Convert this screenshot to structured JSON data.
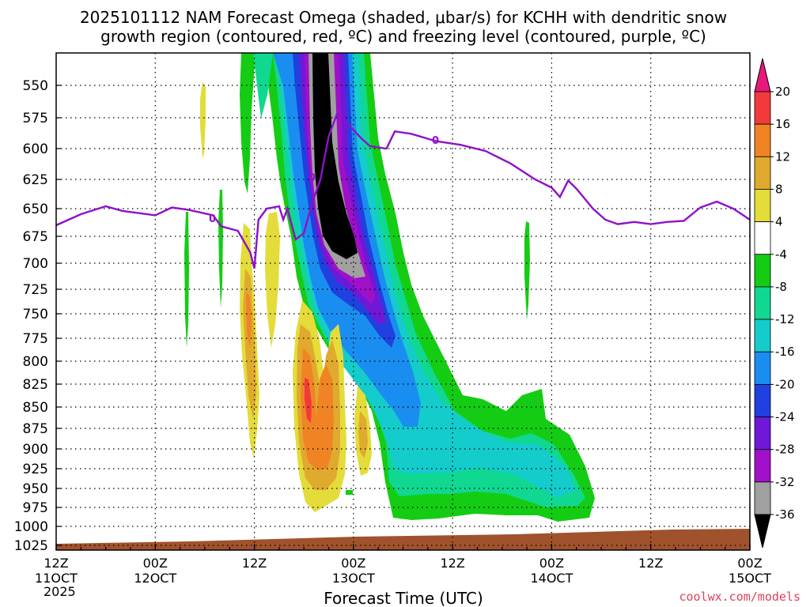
{
  "chart_data": {
    "type": "heatmap",
    "title_lines": [
      "2025101112 NAM Forecast Omega (shaded, μbar/s) for KCHH with dendritic snow",
      "growth region (contoured, red, ºC) and freezing level (contoured, purple, ºC)"
    ],
    "xlabel": "Forecast Time (UTC)",
    "credit": "coolwx.com/models",
    "year_label": "2025",
    "x_range_hours": [
      0,
      84
    ],
    "x_ticks": [
      {
        "hour": 0,
        "line1": "12Z",
        "line2": "11OCT"
      },
      {
        "hour": 12,
        "line1": "00Z",
        "line2": "12OCT"
      },
      {
        "hour": 24,
        "line1": "12Z",
        "line2": ""
      },
      {
        "hour": 36,
        "line1": "00Z",
        "line2": "13OCT"
      },
      {
        "hour": 48,
        "line1": "12Z",
        "line2": ""
      },
      {
        "hour": 60,
        "line1": "00Z",
        "line2": "14OCT"
      },
      {
        "hour": 72,
        "line1": "12Z",
        "line2": ""
      },
      {
        "hour": 84,
        "line1": "00Z",
        "line2": "15OCT"
      }
    ],
    "y_axis_pressure_mb": [
      550,
      575,
      600,
      625,
      650,
      675,
      700,
      725,
      750,
      775,
      800,
      825,
      850,
      875,
      900,
      925,
      950,
      975,
      1000,
      1025
    ],
    "colorbar": {
      "levels": [
        20,
        16,
        12,
        8,
        4,
        -4,
        -8,
        -12,
        -16,
        -20,
        -24,
        -28,
        -32,
        -36
      ],
      "bands": [
        {
          "range": "> 20",
          "color": "#e8177a"
        },
        {
          "range": "16 to 20",
          "color": "#f23a3a"
        },
        {
          "range": "12 to 16",
          "color": "#f08424"
        },
        {
          "range": "8 to 12",
          "color": "#e0aa2e"
        },
        {
          "range": "4 to 8",
          "color": "#e3dc3a"
        },
        {
          "range": "-4 to 4",
          "color": "#ffffff"
        },
        {
          "range": "-8 to -4",
          "color": "#14cc14"
        },
        {
          "range": "-12 to -8",
          "color": "#10d890"
        },
        {
          "range": "-16 to -12",
          "color": "#14cccc"
        },
        {
          "range": "-20 to -16",
          "color": "#1a8ef0"
        },
        {
          "range": "-24 to -20",
          "color": "#2040e0"
        },
        {
          "range": "-28 to -24",
          "color": "#7018d8"
        },
        {
          "range": "-32 to -28",
          "color": "#a010c8"
        },
        {
          "range": "-36 to -32",
          "color": "#a0a0a0"
        },
        {
          "range": "< -36",
          "color": "#000000"
        }
      ]
    },
    "omega_regions": [
      {
        "name": "main-ascent",
        "center_hour": 38,
        "center_mb": 775,
        "peak_value": -40,
        "note": "deep upward motion band slanting from ~550 mb near hour 33 down to ~975 mb near hour 66"
      },
      {
        "name": "descent-core",
        "center_hour": 31,
        "center_mb": 825,
        "peak_value": 18,
        "note": "subsidence maxima near 825-875 mb around hours 29-34"
      },
      {
        "name": "minor-descent",
        "center_hour": 24,
        "center_mb": 775,
        "peak_value": 14
      }
    ],
    "freezing_level": {
      "label": "0",
      "color": "#9010c8",
      "points": [
        [
          0,
          665
        ],
        [
          3,
          655
        ],
        [
          6,
          648
        ],
        [
          8,
          652
        ],
        [
          12,
          656
        ],
        [
          14,
          649
        ],
        [
          16,
          651
        ],
        [
          19,
          656
        ],
        [
          20,
          666
        ],
        [
          22,
          670
        ],
        [
          23.5,
          690
        ],
        [
          24,
          705
        ],
        [
          24.5,
          660
        ],
        [
          25.5,
          650
        ],
        [
          27,
          648
        ],
        [
          27.5,
          660
        ],
        [
          28,
          650
        ],
        [
          29,
          678
        ],
        [
          30,
          672
        ],
        [
          31,
          645
        ],
        [
          32,
          625
        ],
        [
          33,
          590
        ],
        [
          34,
          572
        ],
        [
          35,
          578
        ],
        [
          36,
          585
        ],
        [
          37,
          592
        ],
        [
          38,
          598
        ],
        [
          40,
          600
        ],
        [
          41,
          586
        ],
        [
          43,
          588
        ],
        [
          46,
          594
        ],
        [
          49,
          597
        ],
        [
          52,
          602
        ],
        [
          55,
          612
        ],
        [
          58,
          625
        ],
        [
          60,
          632
        ],
        [
          61,
          640
        ],
        [
          62,
          626
        ],
        [
          63,
          633
        ],
        [
          65,
          650
        ],
        [
          66.5,
          660
        ],
        [
          68,
          664
        ],
        [
          70,
          662
        ],
        [
          72,
          664
        ],
        [
          74,
          662
        ],
        [
          76,
          661
        ],
        [
          78,
          649
        ],
        [
          80,
          644
        ],
        [
          82,
          650
        ],
        [
          84,
          660
        ]
      ]
    },
    "terrain_color": "#a0522d"
  }
}
